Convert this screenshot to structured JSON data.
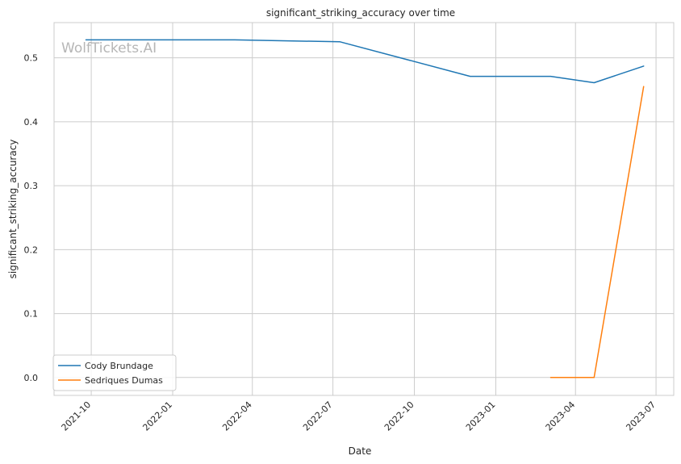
{
  "chart_data": {
    "type": "line",
    "title": "significant_striking_accuracy over time",
    "xlabel": "Date",
    "ylabel": "significant_striking_accuracy",
    "watermark": "WolfTickets.AI",
    "xlim": [
      "2021-08-20",
      "2023-07-21"
    ],
    "ylim": [
      -0.028,
      0.555
    ],
    "x_ticks": [
      "2021-10",
      "2022-01",
      "2022-04",
      "2022-07",
      "2022-10",
      "2023-01",
      "2023-04",
      "2023-07"
    ],
    "y_ticks": [
      "0.0",
      "0.1",
      "0.2",
      "0.3",
      "0.4",
      "0.5"
    ],
    "grid": true,
    "legend_position": "lower-left",
    "series": [
      {
        "name": "Cody Brundage",
        "color": "#1f77b4",
        "x": [
          "2021-09-25",
          "2022-03-12",
          "2022-07-09",
          "2022-12-03",
          "2023-03-04",
          "2023-04-22",
          "2023-06-17"
        ],
        "y": [
          0.528,
          0.528,
          0.525,
          0.471,
          0.471,
          0.461,
          0.487
        ]
      },
      {
        "name": "Sedriques Dumas",
        "color": "#ff7f0e",
        "x": [
          "2023-03-04",
          "2023-04-22",
          "2023-06-17"
        ],
        "y": [
          0.0,
          0.0,
          0.455
        ]
      }
    ]
  }
}
